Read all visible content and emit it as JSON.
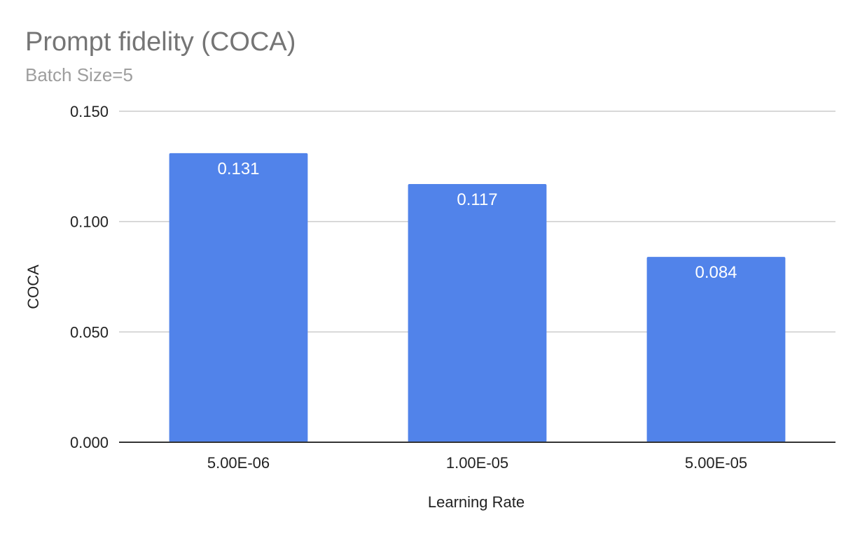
{
  "chart_data": {
    "type": "bar",
    "title": "Prompt fidelity (COCA)",
    "subtitle": "Batch Size=5",
    "xlabel": "Learning Rate",
    "ylabel": "COCA",
    "categories": [
      "5.00E-06",
      "1.00E-05",
      "5.00E-05"
    ],
    "values": [
      0.131,
      0.117,
      0.084
    ],
    "data_labels": [
      "0.131",
      "0.117",
      "0.084"
    ],
    "ylim": [
      0,
      0.15
    ],
    "yticks": [
      0,
      0.05,
      0.1,
      0.15
    ],
    "ytick_labels": [
      "0.000",
      "0.050",
      "0.100",
      "0.150"
    ],
    "grid": true,
    "legend": "none",
    "bar_color": "#5183ea"
  }
}
